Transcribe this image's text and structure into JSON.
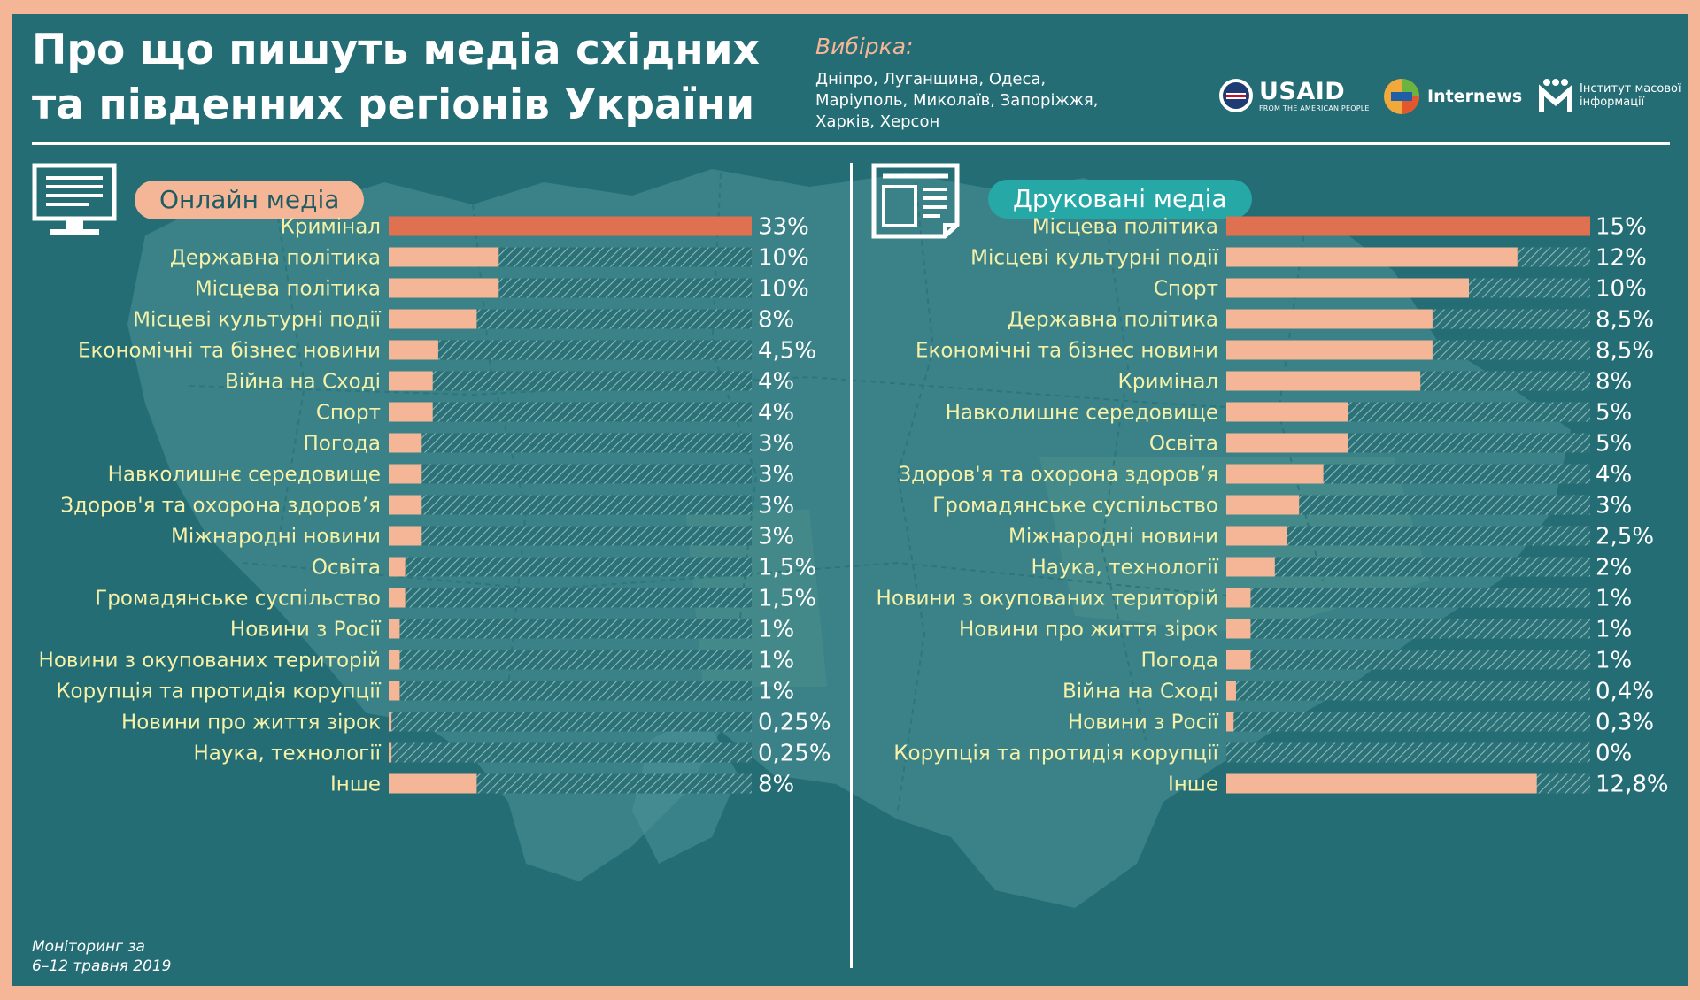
{
  "header": {
    "title_line1": "Про що пишуть медіа східних",
    "title_line2": "та південних регіонів України",
    "sample_label": "Вибірка:",
    "sample_line1": "Дніпро, Луганщина, Одеса,",
    "sample_line2": "Маріуполь, Миколаїв, Запоріжжя,",
    "sample_line3": "Харків, Херсон"
  },
  "logos": {
    "usaid_name": "USAID",
    "usaid_tagline": "FROM THE AMERICAN PEOPLE",
    "internews_name": "Internews",
    "imi_line1": "Інститут масової",
    "imi_line2": "інформації"
  },
  "footnote": {
    "line1": "Моніторинг за",
    "line2": "6–12 травня 2019"
  },
  "colors": {
    "background": "#256d75",
    "border": "#f4b696",
    "bar": "#f4b696",
    "bar_top": "#e07150",
    "label": "#f6f1a8",
    "value": "#ffffff"
  },
  "chart_data": [
    {
      "type": "bar",
      "title": "Онлайн медіа",
      "orientation": "horizontal",
      "xlim": [
        0,
        33
      ],
      "categories": [
        "Кримінал",
        "Державна політика",
        "Місцева політика",
        "Місцеві культурні події",
        "Економічні та бізнес новини",
        "Війна на Сході",
        "Спорт",
        "Погода",
        "Навколишнє середовище",
        "Здоров'я та охорона здоров’я",
        "Міжнародні новини",
        "Освіта",
        "Громадянське суспільство",
        "Новини з Росії",
        "Новини з окупованих територій",
        "Корупція та протидія корупції",
        "Новини про життя зірок",
        "Наука, технології",
        "Інше"
      ],
      "values": [
        33,
        10,
        10,
        8,
        4.5,
        4,
        4,
        3,
        3,
        3,
        3,
        1.5,
        1.5,
        1,
        1,
        1,
        0.25,
        0.25,
        8
      ],
      "value_labels": [
        "33%",
        "10%",
        "10%",
        "8%",
        "4,5%",
        "4%",
        "4%",
        "3%",
        "3%",
        "3%",
        "3%",
        "1,5%",
        "1,5%",
        "1%",
        "1%",
        "1%",
        "0,25%",
        "0,25%",
        "8%"
      ]
    },
    {
      "type": "bar",
      "title": "Друковані медіа",
      "orientation": "horizontal",
      "xlim": [
        0,
        15
      ],
      "categories": [
        "Місцева політика",
        "Місцеві культурні події",
        "Спорт",
        "Державна політика",
        "Економічні та бізнес новини",
        "Кримінал",
        "Навколишнє середовище",
        "Освіта",
        "Здоров'я та охорона здоров’я",
        "Громадянське суспільство",
        "Міжнародні новини",
        "Наука, технології",
        "Новини з окупованих територій",
        "Новини про життя зірок",
        "Погода",
        "Війна на Сході",
        "Новини з Росії",
        "Корупція та протидія корупції",
        "Інше"
      ],
      "values": [
        15,
        12,
        10,
        8.5,
        8.5,
        8,
        5,
        5,
        4,
        3,
        2.5,
        2,
        1,
        1,
        1,
        0.4,
        0.3,
        0,
        12.8
      ],
      "value_labels": [
        "15%",
        "12%",
        "10%",
        "8,5%",
        "8,5%",
        "8%",
        "5%",
        "5%",
        "4%",
        "3%",
        "2,5%",
        "2%",
        "1%",
        "1%",
        "1%",
        "0,4%",
        "0,3%",
        "0%",
        "12,8%"
      ]
    }
  ]
}
